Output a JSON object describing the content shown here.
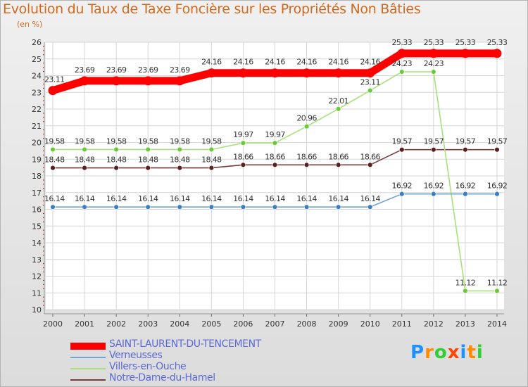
{
  "title": "Evolution du Taux de Taxe Foncière sur les Propriétés Non Bâties",
  "subtitle": "(en %)",
  "logo": {
    "letters": [
      "P",
      "r",
      "o",
      "x",
      "i",
      "t",
      "i"
    ],
    "colors": [
      "#1e90ff",
      "#ff8c00",
      "#32cd32",
      "#ff4500",
      "#1e90ff",
      "#ff8c00",
      "#32cd32"
    ]
  },
  "chart_data": {
    "type": "line",
    "title": "Evolution du Taux de Taxe Foncière sur les Propriétés Non Bâties",
    "ylabel": "(en %)",
    "xlabel": "",
    "x": [
      2000,
      2001,
      2002,
      2003,
      2004,
      2005,
      2006,
      2007,
      2008,
      2009,
      2010,
      2011,
      2012,
      2013,
      2014
    ],
    "x_tick_labels": [
      "2000",
      "2001",
      "2002",
      "2003",
      "2004",
      "2005",
      "2006",
      "2007",
      "2008",
      "2009",
      "2010",
      "2011",
      "2012",
      "2013",
      "2014"
    ],
    "ylim": [
      10,
      26
    ],
    "y_ticks": [
      10,
      11,
      12,
      13,
      14,
      15,
      16,
      17,
      18,
      19,
      20,
      21,
      22,
      23,
      24,
      25,
      26
    ],
    "y_tick_labels": [
      "10",
      "11",
      "12",
      "13",
      "14",
      "15",
      "16",
      "17",
      "18",
      "19",
      "20",
      "21",
      "22",
      "23",
      "24",
      "25",
      "26"
    ],
    "grid": true,
    "legend_position": "bottom-left",
    "series": [
      {
        "name": "SAINT-LAURENT-DU-TENCEMENT",
        "color": "#ff0000",
        "emphasis": "bold",
        "values": [
          23.11,
          23.69,
          23.69,
          23.69,
          23.69,
          24.16,
          24.16,
          24.16,
          24.16,
          24.16,
          24.16,
          25.33,
          25.33,
          25.33,
          25.33
        ],
        "labels": [
          "23.11",
          "23.69",
          "23.69",
          "23.69",
          "23.69",
          "24.16",
          "24.16",
          "24.16",
          "24.16",
          "24.16",
          "24.16",
          "25.33",
          "25.33",
          "25.33",
          "25.33"
        ]
      },
      {
        "name": "Verneusses",
        "color": "#6fa3d6",
        "marker_color": "#3a7fc4",
        "values": [
          16.14,
          16.14,
          16.14,
          16.14,
          16.14,
          16.14,
          16.14,
          16.14,
          16.14,
          16.14,
          16.14,
          16.92,
          16.92,
          16.92,
          16.92
        ],
        "labels": [
          "16.14",
          "16.14",
          "16.14",
          "16.14",
          "16.14",
          "16.14",
          "16.14",
          "16.14",
          "16.14",
          "16.14",
          "16.14",
          "16.92",
          "16.92",
          "16.92",
          "16.92"
        ]
      },
      {
        "name": "Villers-en-Ouche",
        "color": "#a6e27a",
        "marker_color": "#6cc93a",
        "values": [
          19.58,
          19.58,
          19.58,
          19.58,
          19.58,
          19.58,
          19.97,
          19.97,
          20.96,
          22.01,
          23.11,
          24.23,
          24.23,
          11.12,
          11.12
        ],
        "labels": [
          "19.58",
          "19.58",
          "19.58",
          "19.58",
          "19.58",
          "19.58",
          "19.97",
          "19.97",
          "20.96",
          "22.01",
          "23.11",
          "24.23",
          "24.23",
          "11.12",
          "11.12"
        ]
      },
      {
        "name": "Notre-Dame-du-Hamel",
        "color": "#7a3a3a",
        "marker_color": "#5a1f1f",
        "values": [
          18.48,
          18.48,
          18.48,
          18.48,
          18.48,
          18.48,
          18.66,
          18.66,
          18.66,
          18.66,
          18.66,
          19.57,
          19.57,
          19.57,
          19.57
        ],
        "labels": [
          "18.48",
          "18.48",
          "18.48",
          "18.48",
          "18.48",
          "18.48",
          "18.66",
          "18.66",
          "18.66",
          "18.66",
          "18.66",
          "19.57",
          "19.57",
          "19.57",
          "19.57"
        ]
      }
    ]
  }
}
